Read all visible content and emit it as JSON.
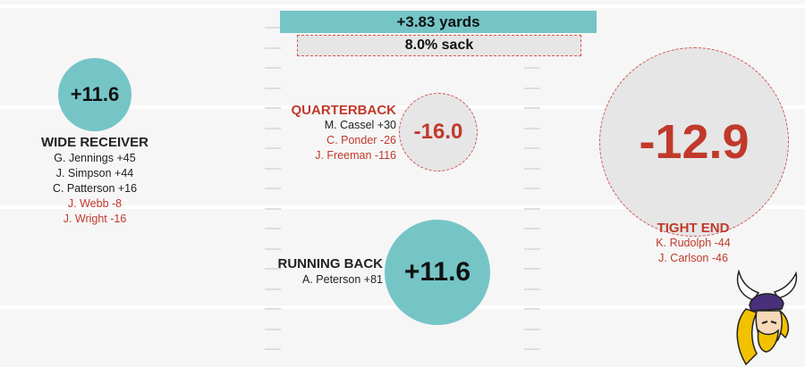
{
  "summary": {
    "yards_label": "+3.83 yards",
    "sack_label": "8.0% sack"
  },
  "wide_receiver": {
    "score": "+11.6",
    "title": "WIDE RECEIVER",
    "players": [
      {
        "text": "G. Jennings +45",
        "negative": false
      },
      {
        "text": "J. Simpson +44",
        "negative": false
      },
      {
        "text": "C. Patterson +16",
        "negative": false
      },
      {
        "text": "J. Webb -8",
        "negative": true
      },
      {
        "text": "J. Wright -16",
        "negative": true
      }
    ]
  },
  "quarterback": {
    "score": "-16.0",
    "title": "QUARTERBACK",
    "players": [
      {
        "text": "M. Cassel +30",
        "negative": false
      },
      {
        "text": "C. Ponder -26",
        "negative": true
      },
      {
        "text": "J. Freeman -116",
        "negative": true
      }
    ]
  },
  "running_back": {
    "score": "+11.6",
    "title": "RUNNING BACK",
    "players": [
      {
        "text": "A. Peterson +81",
        "negative": false
      }
    ]
  },
  "tight_end": {
    "score": "-12.9",
    "title": "TIGHT END",
    "players": [
      {
        "text": "K. Rudolph -44",
        "negative": true
      },
      {
        "text": "J. Carlson -46",
        "negative": true
      }
    ]
  },
  "colors": {
    "positive_fill": "#75c5c7",
    "negative_fill": "#e6e6e6",
    "negative_text": "#c0392b",
    "background": "#f6f6f6"
  },
  "logo": {
    "icon": "vikings-head-icon"
  }
}
